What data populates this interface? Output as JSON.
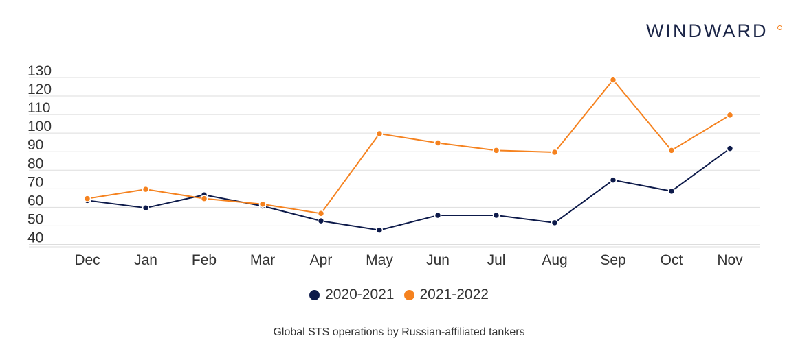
{
  "brand": {
    "logo_text": "WINDWARD",
    "logo_accent_color": "#f5821f",
    "logo_text_color": "#1b2547"
  },
  "caption": "Global STS operations by Russian-affiliated tankers",
  "chart_data": {
    "type": "line",
    "title": "",
    "xlabel": "",
    "ylabel": "",
    "categories": [
      "Dec",
      "Jan",
      "Feb",
      "Mar",
      "Apr",
      "May",
      "Jun",
      "Jul",
      "Aug",
      "Sep",
      "Oct",
      "Nov"
    ],
    "yticks": [
      40,
      50,
      60,
      70,
      80,
      90,
      100,
      110,
      120,
      130
    ],
    "ylim": [
      35,
      130
    ],
    "grid": true,
    "legend_position": "bottom",
    "series": [
      {
        "name": "2020-2021",
        "color": "#0d1a4a",
        "values": [
          60,
          56,
          63,
          57,
          49,
          44,
          52,
          52,
          48,
          71,
          65,
          88
        ]
      },
      {
        "name": "2021-2022",
        "color": "#f5821f",
        "values": [
          61,
          66,
          61,
          58,
          53,
          96,
          91,
          87,
          86,
          125,
          87,
          106
        ]
      }
    ]
  }
}
